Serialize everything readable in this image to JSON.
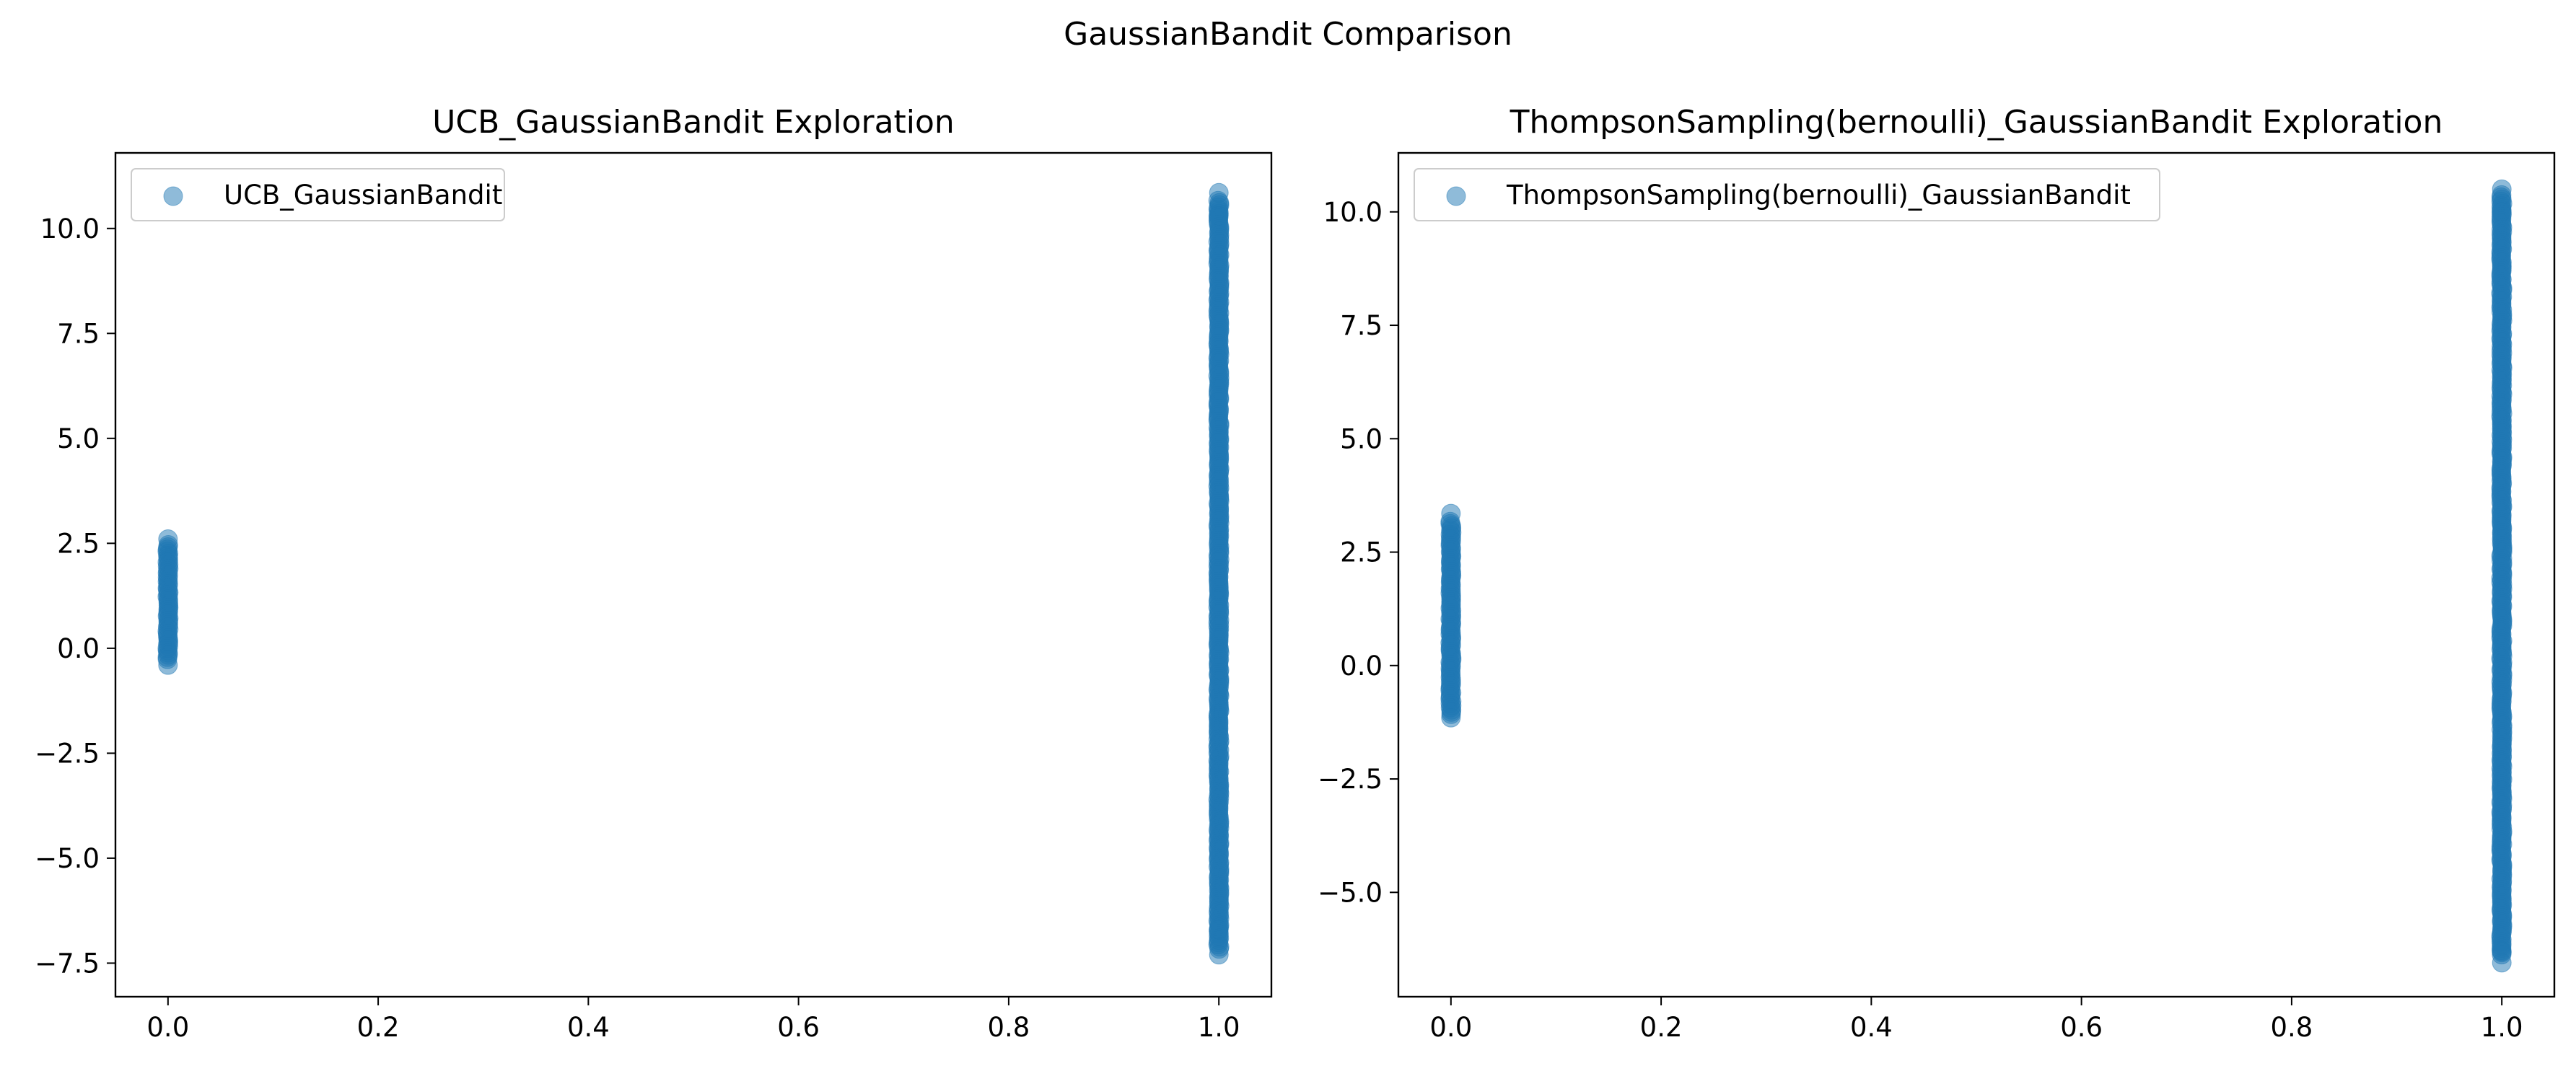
{
  "figure": {
    "suptitle": "GaussianBandit Comparison"
  },
  "chart_data": [
    {
      "type": "scatter",
      "title": "UCB_GaussianBandit Exploration",
      "xlabel": "",
      "ylabel": "",
      "xlim": [
        -0.05,
        1.05
      ],
      "ylim": [
        -8.3,
        11.8
      ],
      "xticks": [
        "0.0",
        "0.2",
        "0.4",
        "0.6",
        "0.8",
        "1.0"
      ],
      "xtick_values": [
        0.0,
        0.2,
        0.4,
        0.6,
        0.8,
        1.0
      ],
      "yticks": [
        "−7.5",
        "−5.0",
        "−2.5",
        "0.0",
        "2.5",
        "5.0",
        "7.5",
        "10.0"
      ],
      "ytick_values": [
        -7.5,
        -5.0,
        -2.5,
        0.0,
        2.5,
        5.0,
        7.5,
        10.0
      ],
      "grid": false,
      "legend_position": "upper left",
      "point_color": "#1f77b4",
      "series": [
        {
          "name": "UCB_GaussianBandit",
          "clusters": [
            {
              "x": 0,
              "y_min": -0.4,
              "y_max": 2.6
            },
            {
              "x": 1,
              "y_min": -7.3,
              "y_max": 10.8
            }
          ],
          "outliers": [
            {
              "x": 0,
              "y": 2.6
            },
            {
              "x": 0,
              "y": -0.4
            },
            {
              "x": 1,
              "y": 10.85
            },
            {
              "x": 1,
              "y": 10.3
            },
            {
              "x": 1,
              "y": -6.7
            },
            {
              "x": 1,
              "y": -7.3
            }
          ]
        }
      ]
    },
    {
      "type": "scatter",
      "title": "ThompsonSampling(bernoulli)_GaussianBandit Exploration",
      "xlabel": "",
      "ylabel": "",
      "xlim": [
        -0.05,
        1.05
      ],
      "ylim": [
        -7.3,
        11.3
      ],
      "xticks": [
        "0.0",
        "0.2",
        "0.4",
        "0.6",
        "0.8",
        "1.0"
      ],
      "xtick_values": [
        0.0,
        0.2,
        0.4,
        0.6,
        0.8,
        1.0
      ],
      "yticks": [
        "−5.0",
        "−2.5",
        "0.0",
        "2.5",
        "5.0",
        "7.5",
        "10.0"
      ],
      "ytick_values": [
        -5.0,
        -2.5,
        0.0,
        2.5,
        5.0,
        7.5,
        10.0
      ],
      "grid": false,
      "legend_position": "upper left",
      "point_color": "#1f77b4",
      "series": [
        {
          "name": "ThompsonSampling(bernoulli)_GaussianBandit",
          "clusters": [
            {
              "x": 0,
              "y_min": -1.2,
              "y_max": 3.3
            },
            {
              "x": 1,
              "y_min": -6.5,
              "y_max": 10.5
            }
          ],
          "outliers": [
            {
              "x": 0,
              "y": 3.35
            },
            {
              "x": 0,
              "y": -1.15
            },
            {
              "x": 1,
              "y": 10.5
            },
            {
              "x": 1,
              "y": 10.0
            },
            {
              "x": 1,
              "y": -6.3
            },
            {
              "x": 1,
              "y": -6.55
            }
          ]
        }
      ]
    }
  ]
}
